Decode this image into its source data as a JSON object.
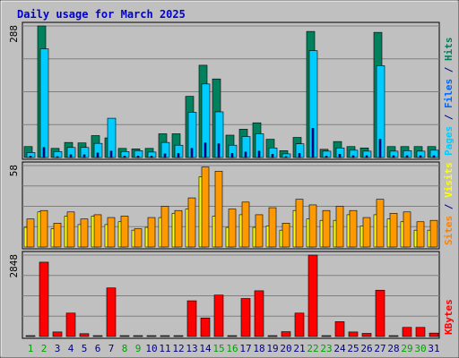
{
  "chart_data": {
    "type": "bar",
    "title": "Daily usage for March 2025",
    "days": [
      "1",
      "2",
      "3",
      "4",
      "5",
      "6",
      "7",
      "8",
      "9",
      "10",
      "11",
      "12",
      "13",
      "14",
      "15",
      "16",
      "17",
      "18",
      "19",
      "20",
      "21",
      "22",
      "23",
      "24",
      "25",
      "26",
      "27",
      "28",
      "29",
      "30",
      "31"
    ],
    "weekend_days": [
      "1",
      "2",
      "8",
      "9",
      "15",
      "16",
      "22",
      "23",
      "29",
      "30"
    ],
    "panels": [
      {
        "id": "hits",
        "ylabel_parts": [
          {
            "text": "Pages",
            "color": "#00ccff"
          },
          {
            "text": " / ",
            "color": "#000080"
          },
          {
            "text": "Files",
            "color": "#0066ff"
          },
          {
            "text": " / ",
            "color": "#000080"
          },
          {
            "text": "Hits",
            "color": "#00805c"
          }
        ],
        "ymax": 288,
        "ymax_label": "288",
        "series": [
          {
            "name": "Hits",
            "color": "#00805c",
            "values": [
              24,
              288,
              20,
              33,
              32,
              48,
              43,
              20,
              19,
              20,
              52,
              52,
              134,
              202,
              172,
              49,
              62,
              76,
              40,
              15,
              44,
              276,
              18,
              35,
              24,
              21,
              274,
              24,
              24,
              24,
              24
            ]
          },
          {
            "name": "Files",
            "color": "#00ccff",
            "values": [
              11,
              238,
              13,
              22,
              22,
              31,
              86,
              13,
              15,
              12,
              33,
              27,
              99,
              161,
              100,
              27,
              46,
              52,
              21,
              8,
              30,
              234,
              14,
              21,
              16,
              14,
              201,
              14,
              15,
              14,
              16
            ]
          },
          {
            "name": "Pages",
            "color": "#0000c0",
            "values": [
              3,
              22,
              2,
              6,
              6,
              10,
              14,
              3,
              3,
              3,
              8,
              9,
              20,
              32,
              30,
              9,
              12,
              14,
              7,
              2,
              9,
              64,
              3,
              7,
              4,
              4,
              40,
              4,
              4,
              4,
              4
            ]
          }
        ]
      },
      {
        "id": "visits",
        "ylabel_parts": [
          {
            "text": "Sites",
            "color": "#ff8000"
          },
          {
            "text": " / ",
            "color": "#000080"
          },
          {
            "text": "Visits",
            "color": "#ffff00"
          }
        ],
        "ymax": 58,
        "ymax_label": "58",
        "series": [
          {
            "name": "Visits",
            "color": "#ffff00",
            "values": [
              14,
              25,
              13,
              22,
              16,
              22,
              16,
              18,
              12,
              14,
              21,
              24,
              27,
              50,
              22,
              14,
              23,
              14,
              15,
              12,
              26,
              20,
              19,
              19,
              23,
              15,
              23,
              20,
              18,
              12,
              12
            ]
          },
          {
            "name": "Sites",
            "color": "#ff9900",
            "values": [
              20,
              26,
              17,
              25,
              20,
              23,
              21,
              22,
              13,
              21,
              29,
              26,
              35,
              57,
              54,
              27,
              32,
              23,
              28,
              17,
              34,
              30,
              26,
              29,
              26,
              21,
              34,
              24,
              25,
              18,
              19
            ]
          }
        ]
      },
      {
        "id": "kbytes",
        "ylabel_parts": [
          {
            "text": "KBytes",
            "color": "#ff0000"
          }
        ],
        "ymax": 2848,
        "ymax_label": "2848",
        "series": [
          {
            "name": "KBytes",
            "color": "#ff0000",
            "values": [
              10,
              2600,
              160,
              820,
              100,
              10,
              1700,
              20,
              10,
              10,
              10,
              20,
              1250,
              650,
              1450,
              20,
              1330,
              1600,
              10,
              170,
              820,
              2848,
              20,
              520,
              160,
              110,
              1620,
              10,
              320,
              320,
              120
            ]
          }
        ]
      }
    ]
  }
}
